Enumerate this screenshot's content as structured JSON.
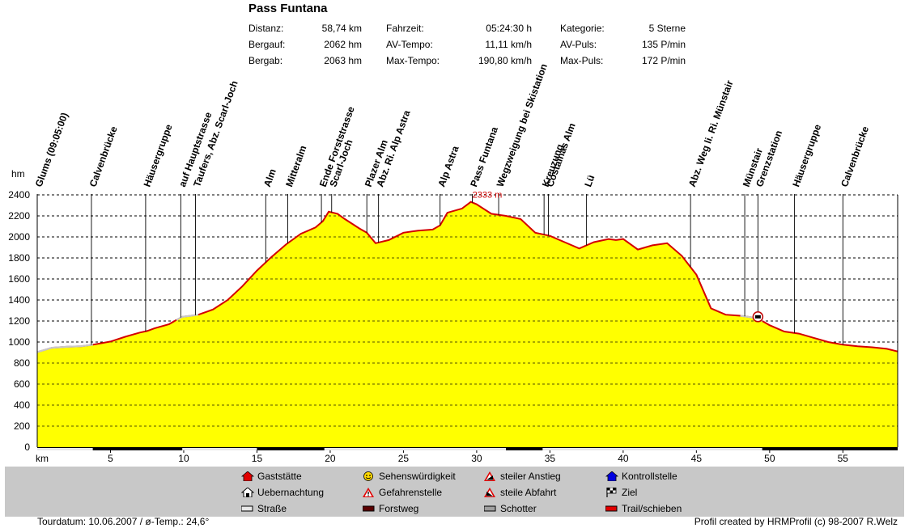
{
  "title": "Pass Funtana",
  "stats": [
    {
      "label": "Distanz:",
      "value": "58,74 km"
    },
    {
      "label": "Bergauf:",
      "value": "2062 hm"
    },
    {
      "label": "Bergab:",
      "value": "2063 hm"
    },
    {
      "label": "Fahrzeit:",
      "value": "05:24:30 h"
    },
    {
      "label": "AV-Tempo:",
      "value": "11,11 km/h"
    },
    {
      "label": "Max-Tempo:",
      "value": "190,80 km/h"
    },
    {
      "label": "Kategorie:",
      "value": "5 Sterne"
    },
    {
      "label": "AV-Puls:",
      "value": "135 P/min"
    },
    {
      "label": "Max-Puls:",
      "value": "172 P/min"
    }
  ],
  "chart_data": {
    "type": "area",
    "xlabel": "km",
    "ylabel": "hm",
    "xlim": [
      0,
      58.74
    ],
    "ylim": [
      0,
      2400
    ],
    "x_ticks": [
      5,
      10,
      15,
      20,
      25,
      30,
      35,
      40,
      45,
      50,
      55
    ],
    "y_ticks": [
      0,
      200,
      400,
      600,
      800,
      1000,
      1200,
      1400,
      1600,
      1800,
      2000,
      2200,
      2400
    ],
    "grid": true,
    "max_label": "2333 m",
    "max_point": {
      "x": 29.6,
      "y": 2333
    },
    "profile": {
      "x": [
        0,
        1,
        2,
        3,
        3.8,
        5,
        6,
        7,
        7.5,
        8,
        9,
        9.5,
        9.9,
        10.5,
        11,
        12,
        13,
        14,
        15,
        16,
        17,
        18,
        19,
        19.5,
        19.9,
        20.5,
        21,
        22,
        22.5,
        23.1,
        24,
        25,
        26,
        27,
        27.5,
        28,
        29,
        29.6,
        30,
        31,
        32,
        33,
        34,
        35,
        36,
        37,
        38,
        39,
        39.5,
        40,
        41,
        42,
        43,
        44,
        45,
        46,
        47,
        48,
        48.5,
        49,
        49.5,
        50,
        51,
        52,
        53,
        54,
        55,
        56,
        57,
        58,
        58.74
      ],
      "y": [
        905,
        945,
        955,
        960,
        975,
        1005,
        1050,
        1090,
        1105,
        1130,
        1170,
        1210,
        1240,
        1250,
        1260,
        1310,
        1400,
        1530,
        1680,
        1810,
        1930,
        2030,
        2090,
        2150,
        2240,
        2220,
        2170,
        2080,
        2040,
        1940,
        1970,
        2040,
        2060,
        2070,
        2110,
        2230,
        2270,
        2333,
        2310,
        2220,
        2200,
        2170,
        2040,
        2010,
        1950,
        1890,
        1950,
        1980,
        1970,
        1980,
        1880,
        1920,
        1940,
        1820,
        1640,
        1320,
        1260,
        1250,
        1240,
        1230,
        1200,
        1160,
        1100,
        1080,
        1040,
        1000,
        975,
        960,
        950,
        935,
        910
      ]
    },
    "waypoints": [
      {
        "name": "Glums (09:05:00)",
        "km": 0
      },
      {
        "name": "Calvenbrücke",
        "km": 3.7
      },
      {
        "name": "Häusergruppe",
        "km": 7.4
      },
      {
        "name": "auf Hauptstrasse",
        "km": 9.8
      },
      {
        "name": "Taufers, Abz. Scarl-Joch",
        "km": 10.8
      },
      {
        "name": "Alm",
        "km": 15.6
      },
      {
        "name": "Mitteralm",
        "km": 17.1
      },
      {
        "name": "Ende Forststrasse",
        "km": 19.4
      },
      {
        "name": "Scarl-Joch",
        "km": 20.1
      },
      {
        "name": "Plazer Alm",
        "km": 22.5
      },
      {
        "name": "Abz. Ri. Alp Astra",
        "km": 23.3
      },
      {
        "name": "Alp Astra",
        "km": 27.5
      },
      {
        "name": "Pass Funtana",
        "km": 29.7
      },
      {
        "name": "Wegzweigung bei Skistation",
        "km": 31.5
      },
      {
        "name": "Kreuzung",
        "km": 34.6
      },
      {
        "name": "Costainas Alm",
        "km": 34.9
      },
      {
        "name": "Lü",
        "km": 37.5
      },
      {
        "name": "Abz. Weg li. Ri. Münstair",
        "km": 44.6
      },
      {
        "name": "Münstair",
        "km": 48.3
      },
      {
        "name": "Grenzstation",
        "km": 49.2
      },
      {
        "name": "Häusergruppe",
        "km": 51.7
      },
      {
        "name": "Calvenbrücke",
        "km": 55
      }
    ]
  },
  "legend": [
    {
      "label": "Gaststätte",
      "icon": "house-red-icon",
      "color": "#e00000"
    },
    {
      "label": "Uebernachtung",
      "icon": "lodge-icon",
      "color": "#000000"
    },
    {
      "label": "Straße",
      "icon": "road-swatch-icon",
      "color": "#e8e8e8"
    },
    {
      "label": "Sehenswürdigkeit",
      "icon": "smiley-icon",
      "color": "#ffd800"
    },
    {
      "label": "Gefahrenstelle",
      "icon": "warning-icon",
      "color": "#e00000"
    },
    {
      "label": "Forstweg",
      "icon": "forest-road-swatch-icon",
      "color": "#5a0000"
    },
    {
      "label": "steiler Anstieg",
      "icon": "steep-climb-icon",
      "color": "#e00000"
    },
    {
      "label": "steile Abfahrt",
      "icon": "steep-descent-icon",
      "color": "#e00000"
    },
    {
      "label": "Schotter",
      "icon": "gravel-swatch-icon",
      "color": "#a0a0a0"
    },
    {
      "label": "Kontrollstelle",
      "icon": "checkpoint-icon",
      "color": "#0000e0"
    },
    {
      "label": "Ziel",
      "icon": "finish-flag-icon",
      "color": "#000000"
    },
    {
      "label": "Trail/schieben",
      "icon": "trail-swatch-icon",
      "color": "#e00000"
    }
  ],
  "footer": {
    "left": "Tourdatum: 10.06.2007  /  ø-Temp.: 24,6°",
    "right": "Profil created by HRMProfil (c) 98-2007 R.Welz"
  },
  "colors": {
    "fill": "#ffff00",
    "outline": "#000000",
    "trail": "#d40000",
    "road": "#c8c8c8"
  }
}
